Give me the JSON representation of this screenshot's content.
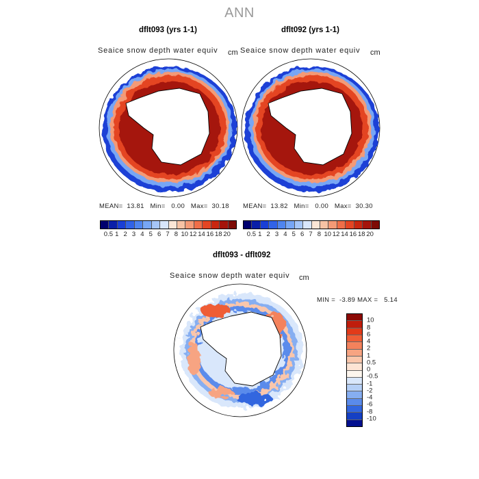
{
  "title": "ANN",
  "panels": [
    {
      "title": "dflt093 (yrs 1-1)",
      "variable": "Seaice snow depth water equiv",
      "units": "cm",
      "stats": {
        "mean_label": "MEAN=",
        "mean": "13.81",
        "min_label": "Min=",
        "min": "0.00",
        "max_label": "Max=",
        "max": "30.18"
      }
    },
    {
      "title": "dflt092 (yrs 1-1)",
      "variable": "Seaice snow depth water equiv",
      "units": "cm",
      "stats": {
        "mean_label": "MEAN=",
        "mean": "13.82",
        "min_label": "Min=",
        "min": "0.00",
        "max_label": "Max=",
        "max": "30.30"
      }
    }
  ],
  "diff": {
    "title": "dflt093 - dflt092",
    "variable": "Seaice snow depth water equiv",
    "units": "cm",
    "min_label": "MIN =",
    "min": "-3.89",
    "max_label": "MAX =",
    "max": "5.14"
  },
  "colorbar": {
    "levels": [
      "0.5",
      "1",
      "2",
      "3",
      "4",
      "5",
      "6",
      "7",
      "8",
      "10",
      "12",
      "14",
      "16",
      "18",
      "20"
    ],
    "colors": [
      "#00006e",
      "#0a1fa8",
      "#1a3fd6",
      "#3163e8",
      "#4f85f0",
      "#77a6f5",
      "#a6c6f8",
      "#d8e6fb",
      "#fbe6d6",
      "#f7c2a4",
      "#f49a76",
      "#ef6e48",
      "#e44523",
      "#c9260f",
      "#a5140a",
      "#7e0c06"
    ]
  },
  "diff_colorbar": {
    "levels": [
      "10",
      "8",
      "6",
      "4",
      "2",
      "1",
      "0.5",
      "0",
      "-0.5",
      "-1",
      "-2",
      "-4",
      "-6",
      "-8",
      "-10"
    ],
    "colors": [
      "#8c0a05",
      "#c01d0c",
      "#e23a19",
      "#ef5d36",
      "#f4825c",
      "#f7a482",
      "#fac6ab",
      "#fde4d4",
      "#fdf6ee",
      "#d9e7fb",
      "#b5cff6",
      "#86aef1",
      "#5a8beb",
      "#3266df",
      "#1540c4",
      "#03108f"
    ]
  }
}
